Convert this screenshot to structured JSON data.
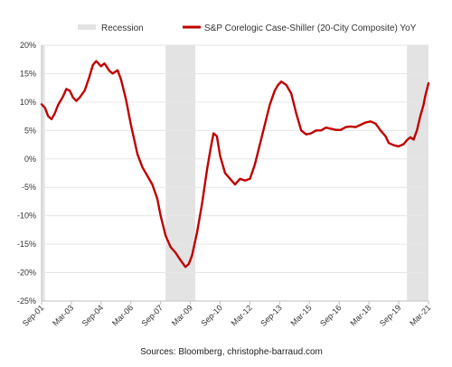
{
  "chart_data": {
    "type": "line",
    "title": "",
    "xlabel": "",
    "ylabel": "",
    "ylim": [
      -25,
      20
    ],
    "y_ticks": [
      20,
      15,
      10,
      5,
      0,
      -5,
      -10,
      -15,
      -20,
      -25
    ],
    "y_tick_labels": [
      "20%",
      "15%",
      "10%",
      "5%",
      "0%",
      "-5%",
      "-10%",
      "-15%",
      "-20%",
      "-25%"
    ],
    "x_range": [
      "2001-09",
      "2021-03"
    ],
    "x_ticks": [
      {
        "date": "2001-09",
        "label": "Sep-01"
      },
      {
        "date": "2003-03",
        "label": "Mar-03"
      },
      {
        "date": "2004-09",
        "label": "Sep-04"
      },
      {
        "date": "2006-03",
        "label": "Mar-06"
      },
      {
        "date": "2007-09",
        "label": "Sep-07"
      },
      {
        "date": "2009-03",
        "label": "Mar-09"
      },
      {
        "date": "2010-09",
        "label": "Sep-10"
      },
      {
        "date": "2012-03",
        "label": "Mar-12"
      },
      {
        "date": "2013-09",
        "label": "Sep-13"
      },
      {
        "date": "2015-03",
        "label": "Mar-15"
      },
      {
        "date": "2016-09",
        "label": "Sep-16"
      },
      {
        "date": "2018-03",
        "label": "Mar-18"
      },
      {
        "date": "2019-09",
        "label": "Sep-19"
      },
      {
        "date": "2021-03",
        "label": "Mar-21"
      }
    ],
    "grid": "horizontal",
    "legend_position": "top",
    "recession_label": "Recession",
    "recessions": [
      {
        "start": "2001-09",
        "end": "2001-11"
      },
      {
        "start": "2007-12",
        "end": "2009-06"
      },
      {
        "start": "2020-02",
        "end": "2021-03"
      }
    ],
    "series": [
      {
        "name": "S&P Corelogic Case-Shiller (20-City Composite) YoY",
        "color": "#c00000",
        "points": [
          [
            "2001-09",
            9.6
          ],
          [
            "2001-11",
            9.0
          ],
          [
            "2002-01",
            7.5
          ],
          [
            "2002-03",
            7.0
          ],
          [
            "2002-05",
            8.0
          ],
          [
            "2002-07",
            9.5
          ],
          [
            "2002-10",
            11.0
          ],
          [
            "2002-12",
            12.3
          ],
          [
            "2003-02",
            12.0
          ],
          [
            "2003-04",
            10.8
          ],
          [
            "2003-06",
            10.2
          ],
          [
            "2003-08",
            10.8
          ],
          [
            "2003-11",
            12.0
          ],
          [
            "2004-02",
            14.5
          ],
          [
            "2004-04",
            16.5
          ],
          [
            "2004-06",
            17.2
          ],
          [
            "2004-09",
            16.3
          ],
          [
            "2004-11",
            16.8
          ],
          [
            "2005-02",
            15.5
          ],
          [
            "2005-04",
            15.0
          ],
          [
            "2005-07",
            15.6
          ],
          [
            "2005-09",
            14.0
          ],
          [
            "2005-12",
            10.5
          ],
          [
            "2006-03",
            6.0
          ],
          [
            "2006-07",
            0.8
          ],
          [
            "2006-10",
            -1.5
          ],
          [
            "2007-01",
            -3.0
          ],
          [
            "2007-04",
            -4.5
          ],
          [
            "2007-07",
            -7.0
          ],
          [
            "2007-09",
            -10.0
          ],
          [
            "2007-12",
            -13.5
          ],
          [
            "2008-03",
            -15.5
          ],
          [
            "2008-06",
            -16.5
          ],
          [
            "2008-09",
            -17.8
          ],
          [
            "2008-12",
            -19.0
          ],
          [
            "2009-02",
            -18.5
          ],
          [
            "2009-04",
            -17.0
          ],
          [
            "2009-07",
            -13.0
          ],
          [
            "2009-10",
            -8.0
          ],
          [
            "2010-01",
            -2.0
          ],
          [
            "2010-03",
            1.5
          ],
          [
            "2010-05",
            4.5
          ],
          [
            "2010-07",
            4.0
          ],
          [
            "2010-09",
            0.5
          ],
          [
            "2010-12",
            -2.5
          ],
          [
            "2011-03",
            -3.5
          ],
          [
            "2011-06",
            -4.5
          ],
          [
            "2011-09",
            -3.5
          ],
          [
            "2011-12",
            -3.8
          ],
          [
            "2012-03",
            -3.5
          ],
          [
            "2012-06",
            -1.0
          ],
          [
            "2012-09",
            2.5
          ],
          [
            "2012-12",
            6.0
          ],
          [
            "2013-03",
            9.5
          ],
          [
            "2013-06",
            12.0
          ],
          [
            "2013-08",
            13.0
          ],
          [
            "2013-10",
            13.6
          ],
          [
            "2014-01",
            13.0
          ],
          [
            "2014-04",
            11.5
          ],
          [
            "2014-07",
            8.0
          ],
          [
            "2014-10",
            5.0
          ],
          [
            "2015-01",
            4.3
          ],
          [
            "2015-04",
            4.5
          ],
          [
            "2015-07",
            5.0
          ],
          [
            "2015-10",
            5.0
          ],
          [
            "2016-01",
            5.5
          ],
          [
            "2016-04",
            5.3
          ],
          [
            "2016-07",
            5.1
          ],
          [
            "2016-10",
            5.1
          ],
          [
            "2017-01",
            5.6
          ],
          [
            "2017-04",
            5.7
          ],
          [
            "2017-07",
            5.6
          ],
          [
            "2017-10",
            6.0
          ],
          [
            "2018-01",
            6.4
          ],
          [
            "2018-04",
            6.6
          ],
          [
            "2018-07",
            6.2
          ],
          [
            "2018-10",
            5.0
          ],
          [
            "2019-01",
            4.0
          ],
          [
            "2019-03",
            2.8
          ],
          [
            "2019-06",
            2.4
          ],
          [
            "2019-09",
            2.2
          ],
          [
            "2019-12",
            2.6
          ],
          [
            "2020-02",
            3.3
          ],
          [
            "2020-04",
            3.8
          ],
          [
            "2020-06",
            3.4
          ],
          [
            "2020-08",
            5.0
          ],
          [
            "2020-10",
            7.5
          ],
          [
            "2020-12",
            9.5
          ],
          [
            "2021-01",
            11.0
          ],
          [
            "2021-03",
            13.3
          ]
        ]
      }
    ],
    "source": "Sources: Bloomberg, christophe-barraud.com"
  }
}
